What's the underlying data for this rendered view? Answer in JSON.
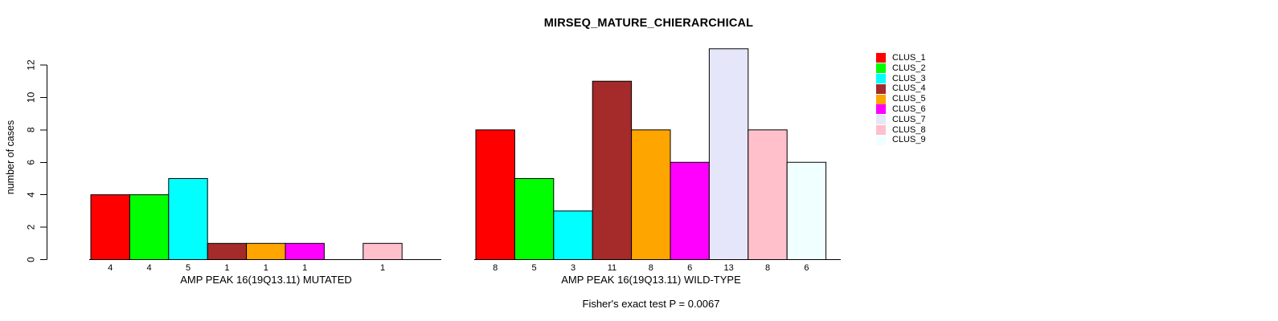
{
  "title": "MIRSEQ_MATURE_CHIERARCHICAL",
  "footer": "Fisher's exact test P = 0.0067",
  "chart_data": {
    "type": "bar",
    "title": "MIRSEQ_MATURE_CHIERARCHICAL",
    "ylabel": "number of cases",
    "ylim": [
      0,
      12
    ],
    "yticks": [
      0,
      2,
      4,
      6,
      8,
      10,
      12
    ],
    "grid": false,
    "legend_position": "right",
    "bar_border_color": "#000000",
    "categories": [
      "CLUS_1",
      "CLUS_2",
      "CLUS_3",
      "CLUS_4",
      "CLUS_5",
      "CLUS_6",
      "CLUS_7",
      "CLUS_8",
      "CLUS_9"
    ],
    "colors": [
      "#FF0000",
      "#00FF00",
      "#00FFFF",
      "#A52A2A",
      "#FFA500",
      "#FF00FF",
      "#E6E6FA",
      "#FFC0CB",
      "#F0FFFF"
    ],
    "groups": [
      {
        "xlabel": "AMP PEAK 16(19Q13.11) MUTATED",
        "values": [
          4,
          4,
          5,
          1,
          1,
          1,
          0,
          1,
          0
        ]
      },
      {
        "xlabel": "AMP PEAK 16(19Q13.11) WILD-TYPE",
        "values": [
          8,
          5,
          3,
          11,
          8,
          6,
          13,
          8,
          6
        ]
      }
    ],
    "annotation": "Fisher's exact test P = 0.0067"
  }
}
